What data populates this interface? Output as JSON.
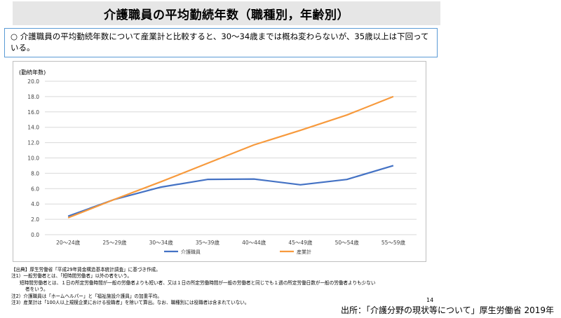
{
  "header": {
    "title": "介護職員の平均勤続年数（職種別，年齢別）"
  },
  "summary": {
    "bullet": "○",
    "text": "介護職員の平均勤続年数について産業計と比較すると、30～34歳までは概ね変わらないが、35歳以上は下回っている。"
  },
  "chart_data": {
    "type": "line",
    "ylabel": "(勤続年数)",
    "ylim": [
      0,
      20
    ],
    "yticks": [
      "0.0",
      "2.0",
      "4.0",
      "6.0",
      "8.0",
      "10.0",
      "12.0",
      "14.0",
      "16.0",
      "18.0",
      "20.0"
    ],
    "categories": [
      "20～24歳",
      "25～29歳",
      "30～34歳",
      "35～39歳",
      "40～44歳",
      "45～49歳",
      "50～54歳",
      "55～59歳"
    ],
    "series": [
      {
        "name": "介護職員",
        "color": "#4472c4",
        "values": [
          2.4,
          4.6,
          6.2,
          7.2,
          7.25,
          6.5,
          7.2,
          9.0
        ]
      },
      {
        "name": "産業計",
        "color": "#f79a3d",
        "values": [
          2.2,
          4.6,
          6.9,
          9.3,
          11.7,
          13.6,
          15.6,
          18.0
        ]
      }
    ],
    "grid": true,
    "legend": "bottom"
  },
  "notes": {
    "source_line": "【出典】厚生労働省「平成29年賃金構造基本統計調査」に基づき作成。",
    "note1": "注1）一般労働者とは、「短時間労働者」以外の者をいう。",
    "note1b": "短時間労働者とは、１日の所定労働時間が一般の労働者よりも短い者、又は１日の所定労働時間が一般の労働者と同じでも１週の所定労働日数が一般の労働者よりも少ない",
    "note1c": "者をいう。",
    "note2": "注2）介護職員は「ホームヘルパー」と「福祉施設介護員」の加重平均。",
    "note3": "注3）産業計は「100人以上規模企業における役職者」を除いて算出。なお、職種別には役職者は含まれていない。"
  },
  "page_number": "14",
  "footer": {
    "source": "出所：「介護分野の現状等について」厚生労働省 2019年"
  }
}
